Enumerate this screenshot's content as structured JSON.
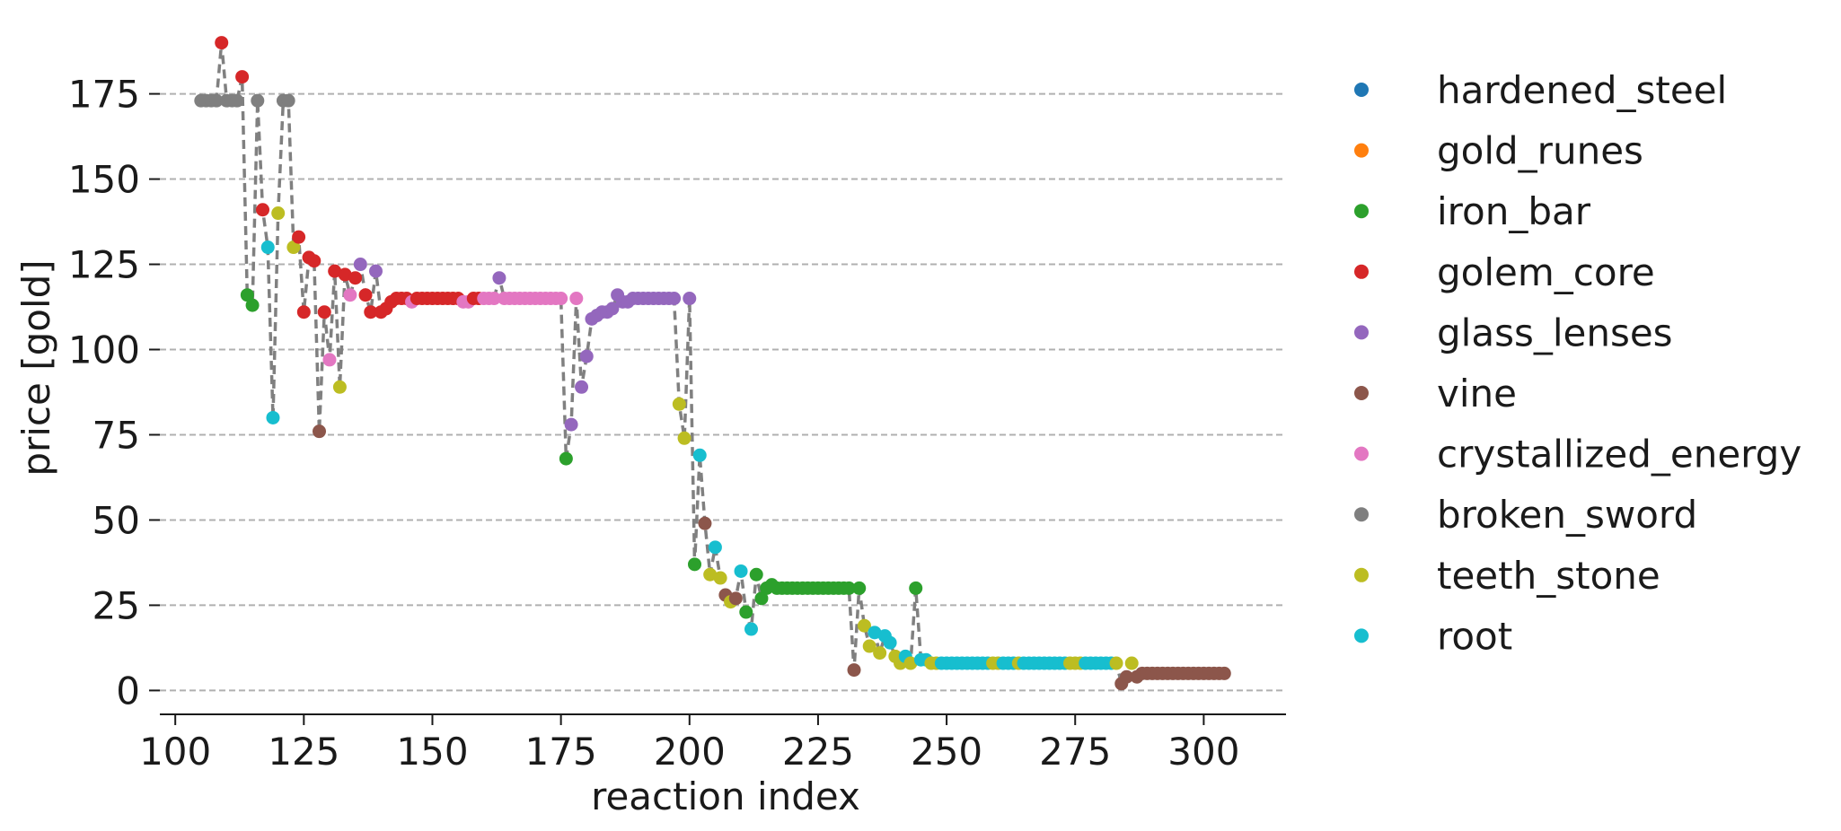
{
  "chart_data": {
    "type": "scatter",
    "title": "",
    "xlabel": "reaction index",
    "ylabel": "price [gold]",
    "xlim": [
      97,
      316
    ],
    "ylim": [
      -7,
      192
    ],
    "xticks": [
      100,
      125,
      150,
      175,
      200,
      225,
      250,
      275,
      300
    ],
    "yticks": [
      0,
      25,
      50,
      75,
      100,
      125,
      150,
      175
    ],
    "grid": "horizontal dashed",
    "legend_position": "right",
    "colors": {
      "hardened_steel": "#1f77b4",
      "gold_runes": "#ff7f0e",
      "iron_bar": "#2ca02c",
      "golem_core": "#d62728",
      "glass_lenses": "#9467bd",
      "vine": "#8c564b",
      "crystallized_energy": "#e377c2",
      "broken_sword": "#7f7f7f",
      "teeth_stone": "#bcbd22",
      "root": "#17becf",
      "connector": "#808080"
    },
    "legend": [
      "hardened_steel",
      "gold_runes",
      "iron_bar",
      "golem_core",
      "glass_lenses",
      "vine",
      "crystallized_energy",
      "broken_sword",
      "teeth_stone",
      "root"
    ],
    "points": [
      [
        105,
        173,
        "broken_sword"
      ],
      [
        106,
        173,
        "broken_sword"
      ],
      [
        107,
        173,
        "broken_sword"
      ],
      [
        108,
        173,
        "broken_sword"
      ],
      [
        109,
        190,
        "golem_core"
      ],
      [
        110,
        173,
        "broken_sword"
      ],
      [
        111,
        173,
        "broken_sword"
      ],
      [
        112,
        173,
        "broken_sword"
      ],
      [
        113,
        180,
        "golem_core"
      ],
      [
        114,
        116,
        "iron_bar"
      ],
      [
        115,
        113,
        "iron_bar"
      ],
      [
        116,
        173,
        "broken_sword"
      ],
      [
        117,
        141,
        "golem_core"
      ],
      [
        118,
        130,
        "root"
      ],
      [
        119,
        80,
        "root"
      ],
      [
        120,
        140,
        "teeth_stone"
      ],
      [
        121,
        173,
        "broken_sword"
      ],
      [
        122,
        173,
        "broken_sword"
      ],
      [
        123,
        130,
        "teeth_stone"
      ],
      [
        124,
        133,
        "golem_core"
      ],
      [
        125,
        111,
        "golem_core"
      ],
      [
        126,
        127,
        "golem_core"
      ],
      [
        127,
        126,
        "golem_core"
      ],
      [
        128,
        76,
        "vine"
      ],
      [
        129,
        111,
        "golem_core"
      ],
      [
        130,
        97,
        "crystallized_energy"
      ],
      [
        131,
        123,
        "golem_core"
      ],
      [
        132,
        89,
        "teeth_stone"
      ],
      [
        133,
        122,
        "golem_core"
      ],
      [
        134,
        116,
        "crystallized_energy"
      ],
      [
        135,
        121,
        "golem_core"
      ],
      [
        136,
        125,
        "glass_lenses"
      ],
      [
        137,
        116,
        "golem_core"
      ],
      [
        138,
        111,
        "golem_core"
      ],
      [
        139,
        123,
        "glass_lenses"
      ],
      [
        140,
        111,
        "golem_core"
      ],
      [
        141,
        112,
        "golem_core"
      ],
      [
        142,
        114,
        "golem_core"
      ],
      [
        143,
        115,
        "golem_core"
      ],
      [
        144,
        115,
        "golem_core"
      ],
      [
        145,
        115,
        "golem_core"
      ],
      [
        146,
        114,
        "crystallized_energy"
      ],
      [
        147,
        115,
        "golem_core"
      ],
      [
        148,
        115,
        "golem_core"
      ],
      [
        149,
        115,
        "golem_core"
      ],
      [
        150,
        115,
        "golem_core"
      ],
      [
        151,
        115,
        "golem_core"
      ],
      [
        152,
        115,
        "golem_core"
      ],
      [
        153,
        115,
        "golem_core"
      ],
      [
        154,
        115,
        "golem_core"
      ],
      [
        155,
        115,
        "golem_core"
      ],
      [
        156,
        114,
        "crystallized_energy"
      ],
      [
        157,
        114,
        "crystallized_energy"
      ],
      [
        158,
        115,
        "golem_core"
      ],
      [
        159,
        115,
        "golem_core"
      ],
      [
        160,
        115,
        "crystallized_energy"
      ],
      [
        161,
        115,
        "crystallized_energy"
      ],
      [
        162,
        115,
        "crystallized_energy"
      ],
      [
        163,
        121,
        "glass_lenses"
      ],
      [
        164,
        115,
        "crystallized_energy"
      ],
      [
        165,
        115,
        "crystallized_energy"
      ],
      [
        166,
        115,
        "crystallized_energy"
      ],
      [
        167,
        115,
        "crystallized_energy"
      ],
      [
        168,
        115,
        "crystallized_energy"
      ],
      [
        169,
        115,
        "crystallized_energy"
      ],
      [
        170,
        115,
        "crystallized_energy"
      ],
      [
        171,
        115,
        "crystallized_energy"
      ],
      [
        172,
        115,
        "crystallized_energy"
      ],
      [
        173,
        115,
        "crystallized_energy"
      ],
      [
        174,
        115,
        "crystallized_energy"
      ],
      [
        175,
        115,
        "crystallized_energy"
      ],
      [
        176,
        68,
        "iron_bar"
      ],
      [
        177,
        78,
        "glass_lenses"
      ],
      [
        178,
        115,
        "crystallized_energy"
      ],
      [
        179,
        89,
        "glass_lenses"
      ],
      [
        180,
        98,
        "glass_lenses"
      ],
      [
        181,
        109,
        "glass_lenses"
      ],
      [
        182,
        110,
        "glass_lenses"
      ],
      [
        183,
        111,
        "glass_lenses"
      ],
      [
        184,
        111,
        "glass_lenses"
      ],
      [
        185,
        112,
        "glass_lenses"
      ],
      [
        186,
        116,
        "glass_lenses"
      ],
      [
        187,
        114,
        "glass_lenses"
      ],
      [
        188,
        114,
        "glass_lenses"
      ],
      [
        189,
        115,
        "glass_lenses"
      ],
      [
        190,
        115,
        "glass_lenses"
      ],
      [
        191,
        115,
        "glass_lenses"
      ],
      [
        192,
        115,
        "glass_lenses"
      ],
      [
        193,
        115,
        "glass_lenses"
      ],
      [
        194,
        115,
        "glass_lenses"
      ],
      [
        195,
        115,
        "glass_lenses"
      ],
      [
        196,
        115,
        "glass_lenses"
      ],
      [
        197,
        115,
        "glass_lenses"
      ],
      [
        198,
        84,
        "teeth_stone"
      ],
      [
        199,
        74,
        "teeth_stone"
      ],
      [
        200,
        115,
        "glass_lenses"
      ],
      [
        201,
        37,
        "iron_bar"
      ],
      [
        202,
        69,
        "root"
      ],
      [
        203,
        49,
        "vine"
      ],
      [
        204,
        34,
        "teeth_stone"
      ],
      [
        205,
        42,
        "root"
      ],
      [
        206,
        33,
        "teeth_stone"
      ],
      [
        207,
        28,
        "vine"
      ],
      [
        208,
        26,
        "teeth_stone"
      ],
      [
        209,
        27,
        "vine"
      ],
      [
        210,
        35,
        "root"
      ],
      [
        211,
        23,
        "iron_bar"
      ],
      [
        212,
        18,
        "root"
      ],
      [
        213,
        34,
        "iron_bar"
      ],
      [
        214,
        27,
        "iron_bar"
      ],
      [
        215,
        30,
        "iron_bar"
      ],
      [
        216,
        31,
        "iron_bar"
      ],
      [
        217,
        30,
        "iron_bar"
      ],
      [
        218,
        30,
        "iron_bar"
      ],
      [
        219,
        30,
        "iron_bar"
      ],
      [
        220,
        30,
        "iron_bar"
      ],
      [
        221,
        30,
        "iron_bar"
      ],
      [
        222,
        30,
        "iron_bar"
      ],
      [
        223,
        30,
        "iron_bar"
      ],
      [
        224,
        30,
        "iron_bar"
      ],
      [
        225,
        30,
        "iron_bar"
      ],
      [
        226,
        30,
        "iron_bar"
      ],
      [
        227,
        30,
        "iron_bar"
      ],
      [
        228,
        30,
        "iron_bar"
      ],
      [
        229,
        30,
        "iron_bar"
      ],
      [
        230,
        30,
        "iron_bar"
      ],
      [
        231,
        30,
        "iron_bar"
      ],
      [
        232,
        6,
        "vine"
      ],
      [
        233,
        30,
        "iron_bar"
      ],
      [
        234,
        19,
        "teeth_stone"
      ],
      [
        235,
        13,
        "teeth_stone"
      ],
      [
        236,
        17,
        "root"
      ],
      [
        237,
        11,
        "teeth_stone"
      ],
      [
        238,
        16,
        "root"
      ],
      [
        239,
        14,
        "root"
      ],
      [
        240,
        10,
        "teeth_stone"
      ],
      [
        241,
        8,
        "teeth_stone"
      ],
      [
        242,
        10,
        "root"
      ],
      [
        243,
        8,
        "teeth_stone"
      ],
      [
        244,
        30,
        "iron_bar"
      ],
      [
        245,
        9,
        "root"
      ],
      [
        246,
        9,
        "root"
      ],
      [
        247,
        8,
        "teeth_stone"
      ],
      [
        248,
        8,
        "teeth_stone"
      ],
      [
        249,
        8,
        "root"
      ],
      [
        250,
        8,
        "root"
      ],
      [
        251,
        8,
        "root"
      ],
      [
        252,
        8,
        "root"
      ],
      [
        253,
        8,
        "root"
      ],
      [
        254,
        8,
        "root"
      ],
      [
        255,
        8,
        "root"
      ],
      [
        256,
        8,
        "root"
      ],
      [
        257,
        8,
        "root"
      ],
      [
        258,
        8,
        "root"
      ],
      [
        259,
        8,
        "teeth_stone"
      ],
      [
        260,
        8,
        "teeth_stone"
      ],
      [
        261,
        8,
        "root"
      ],
      [
        262,
        8,
        "root"
      ],
      [
        263,
        8,
        "root"
      ],
      [
        264,
        8,
        "teeth_stone"
      ],
      [
        265,
        8,
        "root"
      ],
      [
        266,
        8,
        "root"
      ],
      [
        267,
        8,
        "root"
      ],
      [
        268,
        8,
        "root"
      ],
      [
        269,
        8,
        "root"
      ],
      [
        270,
        8,
        "root"
      ],
      [
        271,
        8,
        "root"
      ],
      [
        272,
        8,
        "root"
      ],
      [
        273,
        8,
        "root"
      ],
      [
        274,
        8,
        "teeth_stone"
      ],
      [
        275,
        8,
        "teeth_stone"
      ],
      [
        276,
        8,
        "teeth_stone"
      ],
      [
        277,
        8,
        "root"
      ],
      [
        278,
        8,
        "root"
      ],
      [
        279,
        8,
        "root"
      ],
      [
        280,
        8,
        "root"
      ],
      [
        281,
        8,
        "root"
      ],
      [
        282,
        8,
        "root"
      ],
      [
        283,
        8,
        "teeth_stone"
      ],
      [
        284,
        2,
        "vine"
      ],
      [
        285,
        4,
        "vine"
      ],
      [
        286,
        8,
        "teeth_stone"
      ],
      [
        287,
        4,
        "vine"
      ],
      [
        288,
        5,
        "vine"
      ],
      [
        289,
        5,
        "vine"
      ],
      [
        290,
        5,
        "vine"
      ],
      [
        291,
        5,
        "vine"
      ],
      [
        292,
        5,
        "vine"
      ],
      [
        293,
        5,
        "vine"
      ],
      [
        294,
        5,
        "vine"
      ],
      [
        295,
        5,
        "vine"
      ],
      [
        296,
        5,
        "vine"
      ],
      [
        297,
        5,
        "vine"
      ],
      [
        298,
        5,
        "vine"
      ],
      [
        299,
        5,
        "vine"
      ],
      [
        300,
        5,
        "vine"
      ],
      [
        301,
        5,
        "vine"
      ],
      [
        302,
        5,
        "vine"
      ],
      [
        303,
        5,
        "vine"
      ],
      [
        304,
        5,
        "vine"
      ]
    ]
  }
}
